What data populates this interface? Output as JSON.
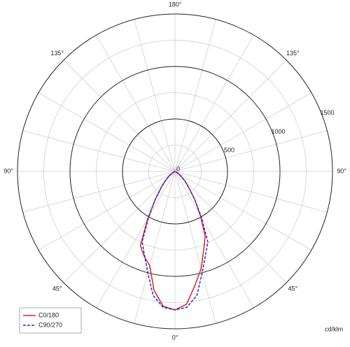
{
  "chart_data": {
    "type": "polar",
    "unit_label": "cd/klm",
    "x": [
      -90,
      -85,
      -80,
      -75,
      -70,
      -65,
      -60,
      -55,
      -50,
      -45,
      -40,
      -35,
      -30,
      -25,
      -20,
      -15,
      -10,
      -5,
      0,
      5,
      10,
      15,
      20,
      25,
      30,
      35,
      40,
      45,
      50,
      55,
      60,
      65,
      70,
      75,
      80,
      85,
      90
    ],
    "series": [
      {
        "name": "C0/180",
        "color": "#e8201c",
        "dash": false,
        "values": [
          0,
          0,
          0,
          0,
          0,
          5,
          20,
          50,
          90,
          140,
          210,
          330,
          520,
          780,
          860,
          930,
          1150,
          1290,
          1320,
          1270,
          1100,
          960,
          800,
          680,
          480,
          330,
          210,
          140,
          90,
          50,
          20,
          5,
          0,
          0,
          0,
          0,
          0
        ]
      },
      {
        "name": "C90/270",
        "color": "#1a2fd6",
        "dash": true,
        "values": [
          0,
          0,
          0,
          0,
          0,
          5,
          20,
          50,
          90,
          140,
          210,
          330,
          500,
          740,
          850,
          1000,
          1200,
          1300,
          1320,
          1300,
          1200,
          1000,
          850,
          740,
          500,
          330,
          210,
          140,
          90,
          50,
          20,
          5,
          0,
          0,
          0,
          0,
          0
        ]
      }
    ],
    "rlim": [
      0,
      1500
    ],
    "rticks": [
      0,
      500,
      1000,
      1500
    ],
    "minor_rticks": [
      250,
      750,
      1250
    ],
    "angle_grid_step": 15,
    "angle_ticks": [
      {
        "value": 180,
        "label": "180°"
      },
      {
        "value": -135,
        "label": "135°"
      },
      {
        "value": 135,
        "label": "135°"
      },
      {
        "value": -90,
        "label": "90°"
      },
      {
        "value": 90,
        "label": "90°"
      },
      {
        "value": -45,
        "label": "45°"
      },
      {
        "value": 45,
        "label": "45°"
      },
      {
        "value": 0,
        "label": "0°"
      }
    ],
    "legend": "lower left"
  }
}
